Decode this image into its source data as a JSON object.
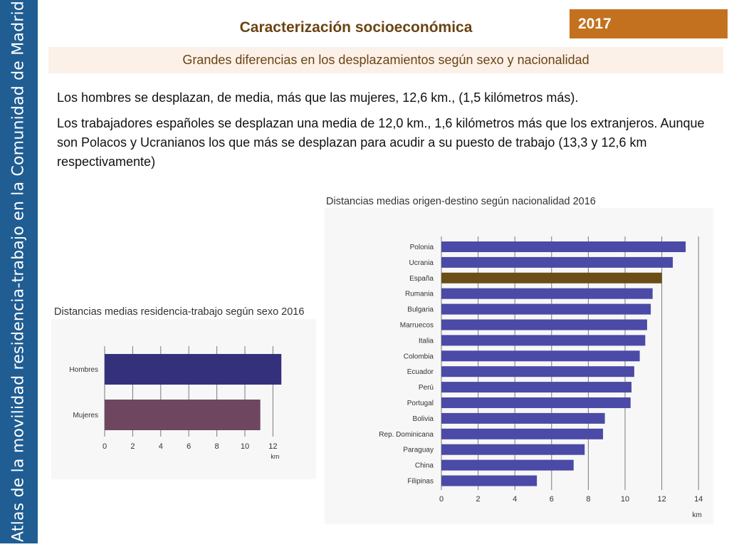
{
  "sidebar": {
    "text": "Atlas de la movilidad residencia-trabajo en la Comunidad de Madrid"
  },
  "header": {
    "title": "Caracterización socioeconómica",
    "year": "2017"
  },
  "subtitle": "Grandes diferencias en los desplazamientos según sexo y nacionalidad",
  "paragraphs": {
    "p1": "Los hombres se desplazan, de media, más que las mujeres,  12,6 km., (1,5 kilómetros más).",
    "p2": "Los trabajadores españoles se desplazan una media de 12,0 km., 1,6 kilómetros más que los extranjeros. Aunque son Polacos y Ucranianos los que más se desplazan para acudir a su puesto de trabajo (13,3 y 12,6 km respectivamente)"
  },
  "colors": {
    "sidebar": "#1f5d93",
    "badge": "#c4711f",
    "title": "#6b4413",
    "bar": "#4b4aa6",
    "highlight": "#6b4d17",
    "hombres": "#35307c",
    "mujeres": "#6e4660"
  },
  "chart_data": [
    {
      "type": "bar",
      "orientation": "horizontal",
      "title": "Distancias medias residencia-trabajo según sexo 2016",
      "categories": [
        "Hombres",
        "Mujeres"
      ],
      "values": [
        12.6,
        11.1
      ],
      "xlabel": "km",
      "xlim": [
        0,
        12
      ],
      "ticks": [
        0,
        2,
        4,
        6,
        8,
        10,
        12
      ],
      "grid": true
    },
    {
      "type": "bar",
      "orientation": "horizontal",
      "title": "Distancias medias  origen-destino según nacionalidad 2016",
      "categories": [
        "Polonia",
        "Ucrania",
        "España",
        "Rumania",
        "Bulgaria",
        "Marruecos",
        "Italia",
        "Colombia",
        "Ecuador",
        "Perú",
        "Portugal",
        "Bolivia",
        "Rep. Dominicana",
        "Paraguay",
        "China",
        "Filipinas"
      ],
      "values": [
        13.3,
        12.6,
        12.0,
        11.5,
        11.4,
        11.2,
        11.1,
        10.8,
        10.5,
        10.35,
        10.3,
        8.9,
        8.8,
        7.8,
        7.2,
        5.2
      ],
      "highlight": "España",
      "xlabel": "km",
      "xlim": [
        0,
        14
      ],
      "ticks": [
        0,
        2,
        4,
        6,
        8,
        10,
        12,
        14
      ],
      "grid": true
    }
  ]
}
